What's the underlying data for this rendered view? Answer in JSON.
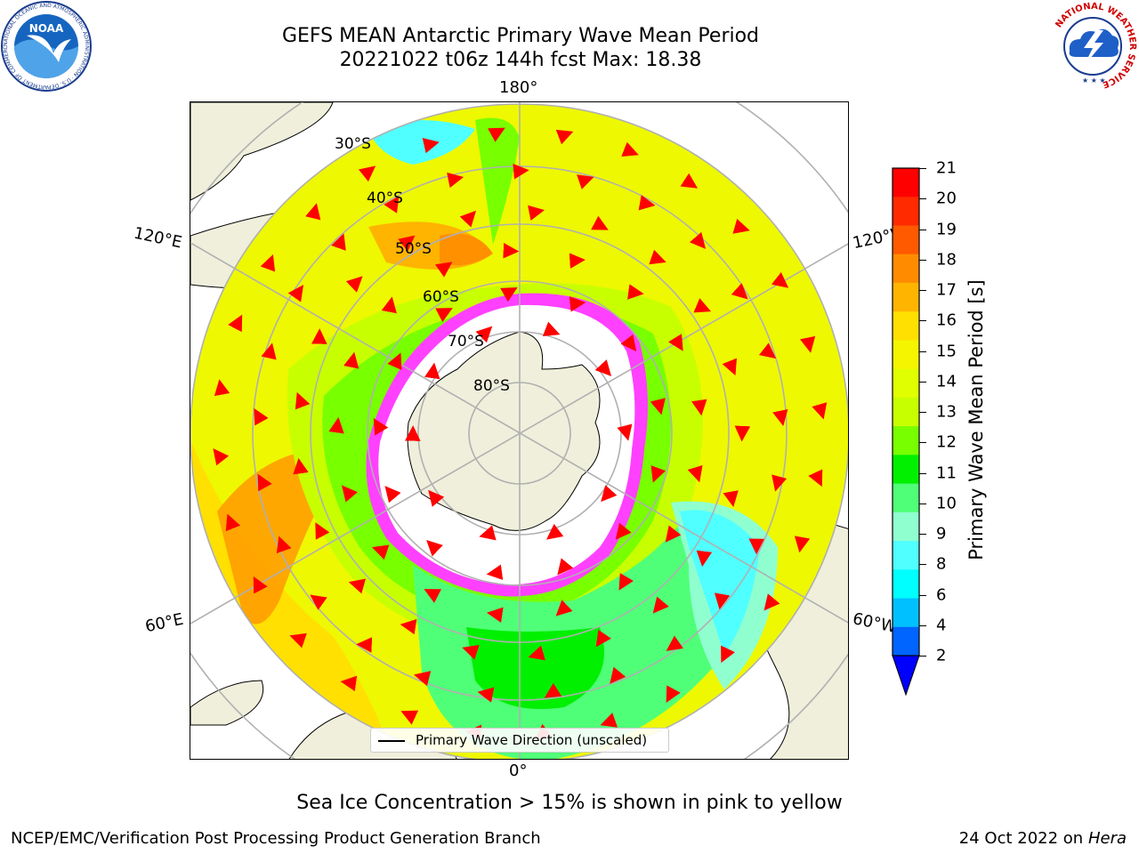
{
  "title_line1": "GEFS MEAN Antarctic Primary Wave Mean Period",
  "title_line2": "20221022 t06z 144h fcst   Max: 18.38",
  "longitude_labels": {
    "top": "180°",
    "bottom": "0°",
    "left_upper": "120°E",
    "left_lower": "60°E",
    "right_upper": "120°W",
    "right_lower": "60°W"
  },
  "latitude_labels": [
    "30°S",
    "40°S",
    "50°S",
    "60°S",
    "70°S",
    "80°S"
  ],
  "colorbar": {
    "label": "Primary Wave Mean Period [s]",
    "ticks": [
      "21",
      "20",
      "19",
      "18",
      "17",
      "16",
      "15",
      "14",
      "13",
      "12",
      "11",
      "10",
      "9",
      "8",
      "6",
      "4",
      "2"
    ],
    "colors": [
      "#ff0000",
      "#ff2a00",
      "#ff5a00",
      "#ff8c00",
      "#ffb400",
      "#ffe000",
      "#f5f500",
      "#e0ff00",
      "#c8ff00",
      "#78ff00",
      "#00f000",
      "#50ff78",
      "#90ffd0",
      "#50ffff",
      "#00ffff",
      "#00c0ff",
      "#0064ff"
    ],
    "extend_color": "#0000ff"
  },
  "legend_text": "Primary Wave Direction (unscaled)",
  "note": "Sea Ice Concentration > 15% is shown in pink to yellow",
  "footer_left": "NCEP/EMC/Verification Post Processing Product Generation Branch",
  "footer_right_date": "24 Oct 2022 on",
  "footer_right_machine": "Hera",
  "logos": {
    "noaa_text": "NOAA",
    "noaa_ring_text": "NATIONAL OCEANIC AND ATMOSPHERIC ADMINISTRATION · U.S. DEPARTMENT OF COMMERCE",
    "nws_ring_text": "NATIONAL WEATHER SERVICE"
  },
  "colors": {
    "land": "#efefdc",
    "arrow": "#ff0000",
    "sea_ice": "#ff40ff",
    "grid": "#b0b0b0"
  }
}
